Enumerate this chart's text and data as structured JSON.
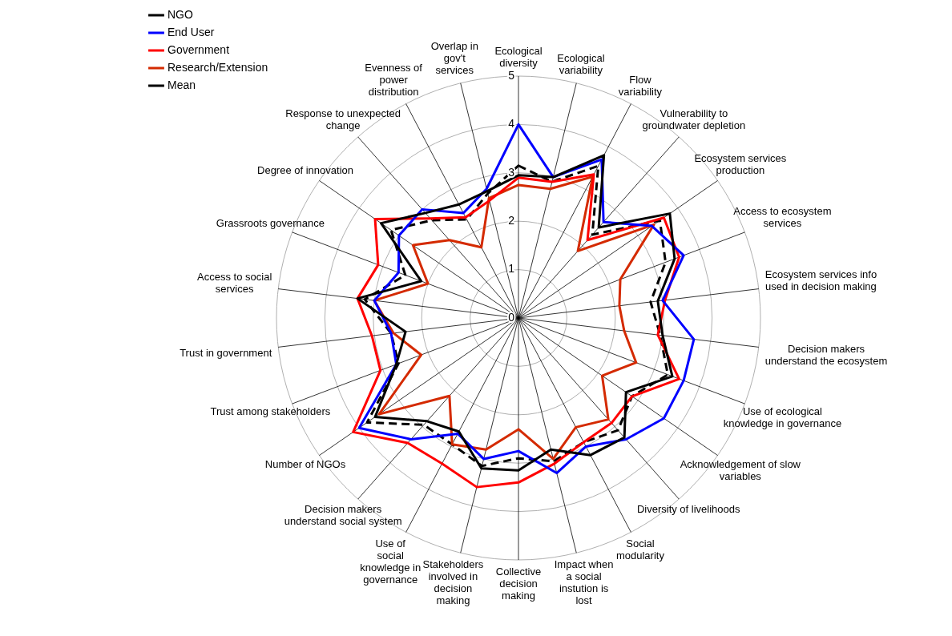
{
  "chart_data": {
    "type": "radar",
    "categories": [
      "Ecological diversity",
      "Ecological variability",
      "Flow variability",
      "Vulnerability to groundwater depletion",
      "Ecosystem services production",
      "Access to ecosystem services",
      "Ecosystem services info used in decision making",
      "Decision makers understand the ecosystem",
      "Use of ecological knowledge in governance",
      "Acknowledgement of slow variables",
      "Diversity of livelihoods",
      "Social modularity",
      "Impact when a social instution is lost",
      "Collective decision making",
      "Stakeholders involved in decision making",
      "Use of social knowledge in governance",
      "Decision makers understand social system",
      "Number of NGOs",
      "Trust among stakeholders",
      "Trust in government",
      "Access to social services",
      "Grassroots governance",
      "Degree of innovation",
      "Response to unexpected change",
      "Evenness of power distribution",
      "Overlap in gov't services"
    ],
    "ylim": [
      0,
      5
    ],
    "yticks": [
      0,
      1,
      2,
      3,
      4,
      5
    ],
    "grid": true,
    "legend": "top left",
    "marker": "none",
    "series": [
      {
        "name": "NGO",
        "color": "#000000",
        "line_style": "solid",
        "values": [
          2.95,
          3.0,
          3.8,
          2.5,
          3.8,
          3.45,
          2.9,
          3.0,
          3.4,
          2.7,
          3.3,
          3.2,
          2.8,
          3.15,
          3.2,
          2.65,
          2.85,
          3.6,
          2.7,
          2.35,
          3.35,
          2.15,
          3.45,
          2.9,
          2.65,
          2.7
        ]
      },
      {
        "name": "End User",
        "color": "#0000ff",
        "line_style": "solid",
        "values": [
          4.0,
          3.0,
          3.7,
          2.65,
          3.35,
          3.65,
          3.0,
          3.65,
          3.65,
          3.65,
          3.35,
          3.0,
          3.3,
          2.75,
          3.0,
          2.7,
          3.35,
          4.0,
          2.7,
          2.65,
          3.0,
          2.65,
          3.0,
          3.0,
          2.45,
          2.75
        ]
      },
      {
        "name": "Government",
        "color": "#ff0000",
        "line_style": "solid",
        "values": [
          2.9,
          2.9,
          3.35,
          2.15,
          3.65,
          3.55,
          3.05,
          2.9,
          3.55,
          2.85,
          2.9,
          2.9,
          3.1,
          3.4,
          3.6,
          3.4,
          3.45,
          4.15,
          3.05,
          3.05,
          3.35,
          3.1,
          3.6,
          2.75,
          2.35,
          2.5
        ]
      },
      {
        "name": "Research/Extension",
        "color": "#d42a00",
        "line_style": "solid",
        "values": [
          2.75,
          2.75,
          3.3,
          1.85,
          3.4,
          2.25,
          2.1,
          2.2,
          2.6,
          2.1,
          2.8,
          2.55,
          3.0,
          2.3,
          2.8,
          2.95,
          2.15,
          3.5,
          2.15,
          2.6,
          3.0,
          2.0,
          2.65,
          2.15,
          1.65,
          2.55
        ]
      },
      {
        "name": "Mean",
        "color": "#000000",
        "line_style": "dashed",
        "values": [
          3.15,
          2.9,
          3.55,
          2.3,
          3.55,
          3.25,
          2.75,
          2.95,
          3.3,
          2.85,
          3.1,
          2.9,
          3.05,
          2.9,
          3.15,
          2.95,
          2.95,
          3.8,
          2.65,
          2.65,
          3.2,
          2.5,
          3.2,
          2.7,
          2.3,
          2.65
        ]
      }
    ]
  }
}
